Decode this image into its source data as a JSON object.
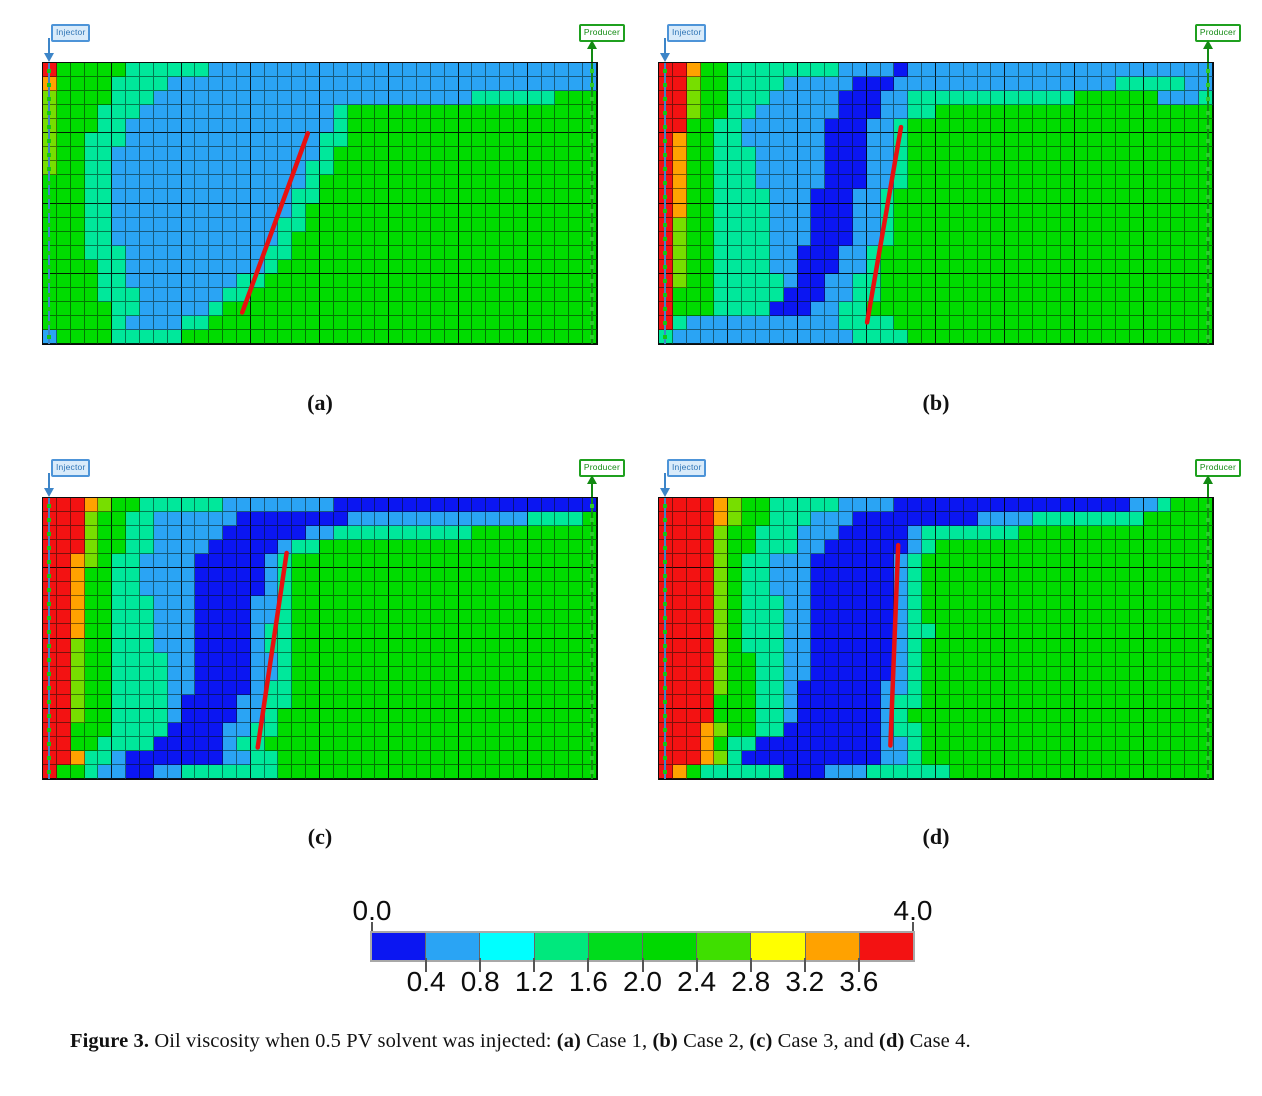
{
  "figure": {
    "caption_segments": [
      {
        "t": "Figure 3.",
        "b": true
      },
      {
        "t": " Oil viscosity when 0.5 PV solvent was injected: ",
        "b": false
      },
      {
        "t": "(a)",
        "b": true
      },
      {
        "t": " Case 1, ",
        "b": false
      },
      {
        "t": "(b)",
        "b": true
      },
      {
        "t": " Case 2, ",
        "b": false
      },
      {
        "t": "(c)",
        "b": true
      },
      {
        "t": " Case 3, and ",
        "b": false
      },
      {
        "t": "(d)",
        "b": true
      },
      {
        "t": " Case 4.",
        "b": false
      }
    ],
    "palette": {
      "R": "#F31212",
      "O": "#FFA200",
      "L": "#77DE00",
      "G": "#00DC00",
      "C": "#00E89B",
      "B": "#2AA4F4",
      "D": "#0B16F2"
    },
    "line_color": "#E81010",
    "well_colors": {
      "injector_line": "#3D85C8",
      "injector_dot": "#15C615",
      "producer_line": "#128A12",
      "producer_dot": "#2ECC2E",
      "injector_tag_bg": "#D9EBFA",
      "injector_tag_border": "#4D94D8",
      "injector_tag_text": "#2E74B5",
      "producer_tag_bg": "#FFFFFF",
      "producer_tag_border": "#1FA01F",
      "producer_tag_text": "#128A12"
    },
    "colorbar": {
      "min_label": "0.0",
      "max_label": "4.0",
      "tick_labels": [
        "0.4",
        "0.8",
        "1.2",
        "1.6",
        "2.0",
        "2.4",
        "2.8",
        "3.2",
        "3.6"
      ],
      "segments": [
        "#0B16F2",
        "#2AA4F4",
        "#00FFFF",
        "#00E87D",
        "#00DC1C",
        "#00D800",
        "#3FDF00",
        "#FFFF00",
        "#FFA200",
        "#F31212"
      ]
    },
    "chart_data": {
      "type": "heatmap",
      "quantity": "Oil viscosity",
      "value_range": [
        0.0,
        4.0
      ],
      "colorbar_ticks": [
        0.0,
        0.4,
        0.8,
        1.2,
        1.6,
        2.0,
        2.4,
        2.8,
        3.2,
        3.6,
        4.0
      ],
      "panel_cases": [
        "Case 1",
        "Case 2",
        "Case 3",
        "Case 4"
      ]
    },
    "panels": [
      {
        "id": "a",
        "label": "(a)",
        "injector_label": "Injector",
        "producer_label": "Producer",
        "miscible_front_line": {
          "x1": 0.36,
          "y1": 0.885,
          "x2": 0.478,
          "y2": 0.252
        },
        "grid": [
          "RGGGGGCCCCCCBBBBBBBBBBBBBBBBBBBBBBBBBBBB",
          "OGGGGCCCCBBBBBBBBBBBBBBBBBBBBBBBBBBBBBBB",
          "LGGGGCCCBBBBBBBBBBBBBBBBBBBBBBBCCCCCCGGG",
          "LGGGCCCBBBBBBBBBBBBBBCGGGGGGGGGGGGGGGGGG",
          "LGGGCCBBBBBBBBBBBBBBBCGGGGGGGGGGGGGGGGGG",
          "LGGCCCBBBBBBBBBBBBBBCCGGGGGGGGGGGGGGGGGG",
          "LGGCCBBBBBBBBBBBBBBBCGGGGGGGGGGGGGGGGGGG",
          "LGGCCBBBBBBBBBBBBBBCCGGGGGGGGGGGGGGGGGGG",
          "GGGCCBBBBBBBBBBBBBBCGGGGGGGGGGGGGGGGGGGG",
          "GGGCCBBBBBBBBBBBBBCCGGGGGGGGGGGGGGGGGGGG",
          "GGGCCBBBBBBBBBBBBBCGGGGGGGGGGGGGGGGGGGGG",
          "GGGCCBBBBBBBBBBBBCCGGGGGGGGGGGGGGGGGGGGG",
          "GGGCCBBBBBBBBBBBBCGGGGGGGGGGGGGGGGGGGGGG",
          "GGGCCCBBBBBBBBBBCCGGGGGGGGGGGGGGGGGGGGGG",
          "GGGGCCBBBBBBBBBBCGGGGGGGGGGGGGGGGGGGGGGG",
          "GGGGCCBBBBBBBBCCGGGGGGGGGGGGGGGGGGGGGGGG",
          "GGGGCCCBBBBBBCCGGGGGGGGGGGGGGGGGGGGGGGGG",
          "GGGGGCCBBBBBCGGGGGGGGGGGGGGGGGGGGGGGGGGG",
          "GGGGGCBBBBCCGGGGGGGGGGGGGGGGGGGGGGGGGGGG",
          "BGGGGCCCCCGGGGGGGGGGGGGGGGGGGGGGGGGGGGGG"
        ]
      },
      {
        "id": "b",
        "label": "(b)",
        "injector_label": "Injector",
        "producer_label": "Producer",
        "miscible_front_line": {
          "x1": 0.376,
          "y1": 0.92,
          "x2": 0.437,
          "y2": 0.23
        },
        "grid": [
          "RROGGCCCCCCCCBBBBDBBBBBBBBBBBBBBBBBBBBBB",
          "RRLGGCCCCBBBBBDDDBBBBBBBBBBBBBBBBCCCCCBB",
          "RRLGGCCCBBBBBDDDBBCCCCCCCCCCCCGGGGGGBBBC",
          "RRLGGCCBBBBBBDDDBBCCGGGGGGGGGGGGGGGGGGGG",
          "RRGGCCBBBBBBDDDBBCGGGGGGGGGGGGGGGGGGGGGG",
          "ROGGCCBBBBBBDDDBBCGGGGGGGGGGGGGGGGGGGGGG",
          "ROGGCCCBBBBBDDDBBCGGGGGGGGGGGGGGGGGGGGGG",
          "ROGGCCCBBBBBDDDBBCGGGGGGGGGGGGGGGGGGGGGG",
          "ROGGCCCBBBBBDDDBBCGGGGGGGGGGGGGGGGGGGGGG",
          "ROGGCCCCBBBDDDBBCGGGGGGGGGGGGGGGGGGGGGGG",
          "ROGGCCCCBBBDDDBBCGGGGGGGGGGGGGGGGGGGGGGG",
          "RLGGCCCCBBBDDDBBCGGGGGGGGGGGGGGGGGGGGGGG",
          "RLGGCCCCBBBDDDBBCGGGGGGGGGGGGGGGGGGGGGGG",
          "RLGGCCCCBBDDDBBCGGGGGGGGGGGGGGGGGGGGGGGG",
          "RLGGCCCCBBDDDBBCGGGGGGGGGGGGGGGGGGGGGGGG",
          "RLGGCCCCCBDDBBCCGGGGGGGGGGGGGGGGGGGGGGGG",
          "RGGGCCCCCDDDBBCCGGGGGGGGGGGGGGGGGGGGGGGG",
          "RGGGCCCCDDDBBCCGGGGGGGGGGGGGGGGGGGGGGGGG",
          "RCBBBBBBBBBBBCCCCGGGGGGGGGGGGGGGGGGGGGGG",
          "CBBBBBBBBBBBBBCCCCGGGGGGGGGGGGGGGGGGGGGG"
        ]
      },
      {
        "id": "c",
        "label": "(c)",
        "injector_label": "Injector",
        "producer_label": "Producer",
        "miscible_front_line": {
          "x1": 0.388,
          "y1": 0.885,
          "x2": 0.44,
          "y2": 0.198
        },
        "grid": [
          "RRROLGGCCCCCCBBBBBBBBDDDDDDDDDDDDDDDDDDD",
          "RRRLGGCCBBBBBBDDDDDDDDBBBBBBBBBBBBBCCCCG",
          "RRRLGGCCBBBBBDDDDDDBBCCCCCCCCCCGGGGGGGGG",
          "RRRLGGCCBBBBDDDDDBCCGGGGGGGGGGGGGGGGGGGG",
          "RROLGCCBBBBDDDDDBCGGGGGGGGGGGGGGGGGGGGGG",
          "RROGGCCBBBBDDDDDBCGGGGGGGGGGGGGGGGGGGGGG",
          "RROGGCCBBBBDDDDDBCGGGGGGGGGGGGGGGGGGGGGG",
          "RROGGCCCBBBDDDDBBCGGGGGGGGGGGGGGGGGGGGGG",
          "RROGGCCCBBBDDDDBBCGGGGGGGGGGGGGGGGGGGGGG",
          "RROGGCCCBBBDDDDBCCGGGGGGGGGGGGGGGGGGGGGG",
          "RRLGGCCCBBBDDDDBCCGGGGGGGGGGGGGGGGGGGGGG",
          "RRLGGCCCCBBDDDDBBCGGGGGGGGGGGGGGGGGGGGGG",
          "RRLGGCCCCBBDDDDBBCGGGGGGGGGGGGGGGGGGGGGG",
          "RRLGGCCCCBBDDDDBCCGGGGGGGGGGGGGGGGGGGGGG",
          "RRLGGCCCCBDDDDBBCCGGGGGGGGGGGGGGGGGGGGGG",
          "RRLGGCCCCBDDDDBBCGGGGGGGGGGGGGGGGGGGGGGG",
          "RRGGGCCCCDDDDBBCCGGGGGGGGGGGGGGGGGGGGGGG",
          "RRGGCCCCDDDDDBCCGGGGGGGGGGGGGGGGGGGGGGGG",
          "RROCCBDDDDDDDBBCCGGGGGGGGGGGGGGGGGGGGGGG",
          "RGGCBBDDBBCCCCCCCGGGGGGGGGGGGGGGGGGGGGGG"
        ]
      },
      {
        "id": "d",
        "label": "(d)",
        "injector_label": "Injector",
        "producer_label": "Producer",
        "miscible_front_line": {
          "x1": 0.418,
          "y1": 0.878,
          "x2": 0.432,
          "y2": 0.17
        },
        "grid": [
          "RRRROLGGCCCCCBBBBDDDDDDDDDDDDDDDDDBBCGGG",
          "RRRROLGGCCCBBBDDDDDDDDDBBBBCCCCCCCCGGGGG",
          "RRRRLGGCCCBBBDDDDDBCCCCCCCGGGGGGGGGGGGGG",
          "RRRRLGGCCCBBDDDDDDBCGGGGGGGGGGGGGGGGGGGG",
          "RRRRLGCCBBBDDDDDDBCGGGGGGGGGGGGGGGGGGGGG",
          "RRRRLGCCBBBDDDDDDBCGGGGGGGGGGGGGGGGGGGGG",
          "RRRRLGCCBBBDDDDDDBCGGGGGGGGGGGGGGGGGGGGG",
          "RRRRLGCCCBBDDDDDDBCGGGGGGGGGGGGGGGGGGGGG",
          "RRRRLGCCCBBDDDDDDBCGGGGGGGGGGGGGGGGGGGGG",
          "RRRRLGCCCBBDDDDDDBCCGGGGGGGGGGGGGGGGGGGG",
          "RRRRLGCCCBBDDDDDDBCGGGGGGGGGGGGGGGGGGGGG",
          "RRRRLGGCCBBDDDDDDBCGGGGGGGGGGGGGGGGGGGGG",
          "RRRRLGGCCBBDDDDDDBCGGGGGGGGGGGGGGGGGGGGG",
          "RRRRLGGCCBDDDDDDBBCGGGGGGGGGGGGGGGGGGGGG",
          "RRRRGGGCCBDDDDDDBCCGGGGGGGGGGGGGGGGGGGGG",
          "RRRRGGGCCBDDDDDDBCGGGGGGGGGGGGGGGGGGGGGG",
          "RRROLGGCCDDDDDDDBCCGGGGGGGGGGGGGGGGGGGGG",
          "RRROGCCDDDDDDDDDBBCGGGGGGGGGGGGGGGGGGGGG",
          "RRROLCDDDDDDDDDDBBCGGGGGGGGGGGGGGGGGGGGG",
          "ROGCCCCCCDDDBBBCCCCCCGGGGGGGGGGGGGGGGGGG"
        ]
      }
    ]
  }
}
